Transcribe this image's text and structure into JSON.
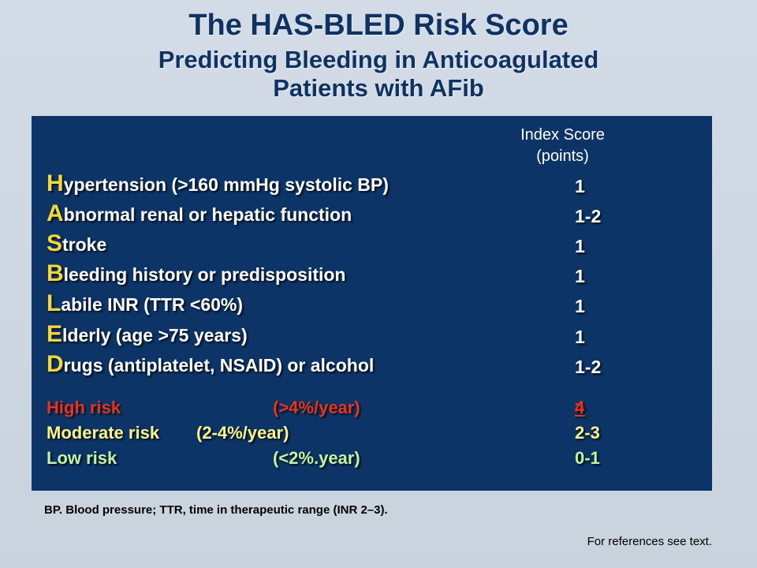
{
  "title": "The HAS-BLED Risk Score",
  "subtitle_line1": "Predicting Bleeding in Anticoagulated",
  "subtitle_line2": "Patients with AFib",
  "column_header": {
    "line1": "Index Score",
    "line2": "(points)"
  },
  "criteria": [
    {
      "letter": "H",
      "rest": "ypertension (>160 mmHg systolic BP)",
      "points": "1"
    },
    {
      "letter": "A",
      "rest": "bnormal renal or hepatic function",
      "points": "1-2"
    },
    {
      "letter": "S",
      "rest": "troke",
      "points": "1"
    },
    {
      "letter": "B",
      "rest": "leeding history or predisposition",
      "points": "1"
    },
    {
      "letter": "L",
      "rest": "abile INR (TTR <60%)",
      "points": "1"
    },
    {
      "letter": "E",
      "rest": "lderly (age >75 years)",
      "points": "1"
    },
    {
      "letter": "D",
      "rest": "rugs (antiplatelet, NSAID) or alcohol",
      "points": "1-2"
    }
  ],
  "risk_levels": [
    {
      "name": "High risk",
      "rate": "(>4%/year)",
      "points_symbol": ">",
      "points_value": " 4"
    },
    {
      "name": "Moderate risk",
      "rate": "(2-4%/year)",
      "points": "2-3"
    },
    {
      "name": "Low risk",
      "rate": "(<2%.year)",
      "points": "0-1"
    }
  ],
  "footnote": "BP. Blood pressure; TTR, time in therapeutic range (INR 2–3).",
  "references_note": "For references see text.",
  "colors": {
    "navy": "#0e3262",
    "panel": "#0c3466",
    "acronym_letter": "#f5d73b",
    "high_risk": "#e8341c",
    "moderate_risk": "#fbf28a",
    "low_risk": "#c4f2a4"
  }
}
